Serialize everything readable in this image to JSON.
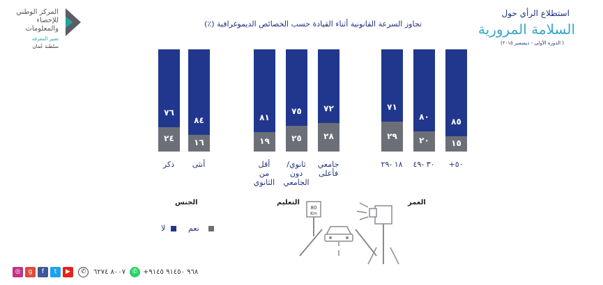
{
  "colors": {
    "yes": "#6d6f78",
    "no": "#21378e",
    "accent": "#3aa6c9"
  },
  "header": {
    "survey_line1": "استطلاع الرأي حول",
    "survey_line2": "السلامة المرورية",
    "survey_line3": "( الدورة الأولى - ديسمبر ٢٠١٥)",
    "chart_title": "تجاوز السرعة القانونية أثناء القيادة حسب الخصائص الديموغرافية (٪)"
  },
  "logo": {
    "line1": "المركز الوطني للإحصاء والمعلومات",
    "line2": "تعبير المعرفة",
    "line3": "سلطنة عُمان"
  },
  "chart_data": {
    "type": "bar",
    "stacked": true,
    "ylim": [
      0,
      100
    ],
    "categories": [
      "ذكر",
      "أنثى",
      "أقل من الثانوي",
      "ثانوي/ دون الجامعي",
      "جامعي فأعلى",
      "١٨ -٢٩",
      "٣٠ -٤٩",
      "٥٠+"
    ],
    "groups": [
      {
        "label": "الجنس",
        "categories": [
          "ذكر",
          "أنثى"
        ]
      },
      {
        "label": "التعليم",
        "categories": [
          "أقل من الثانوي",
          "ثانوي/ دون الجامعي",
          "جامعي فأعلى"
        ]
      },
      {
        "label": "العمر",
        "categories": [
          "١٨ -٢٩",
          "٣٠ -٤٩",
          "٥٠+"
        ]
      }
    ],
    "series": [
      {
        "name": "نعم",
        "values": [
          24,
          16,
          19,
          25,
          28,
          29,
          20,
          15
        ],
        "labels": [
          "٢٤",
          "١٦",
          "١٩",
          "٢٥",
          "٢٨",
          "٢٩",
          "٢٠",
          "١٥"
        ]
      },
      {
        "name": "لا",
        "values": [
          76,
          84,
          81,
          75,
          72,
          71,
          80,
          85
        ],
        "labels": [
          "٧٦",
          "٨٤",
          "٨١",
          "٧٥",
          "٧٢",
          "٧١",
          "٨٠",
          "٨٥"
        ]
      }
    ]
  },
  "legend": {
    "yes_label": "نعم",
    "no_label": "لا"
  },
  "road_sign": {
    "speed": "80",
    "unit": "Km"
  },
  "footer": {
    "whatsapp": "+٩٦٨ ٩١٤٥٠ ٩١٤٥",
    "phone": "٨٠٠٧ ٦٢٧٤",
    "social_icons": [
      "instagram-icon",
      "google-plus-icon",
      "facebook-icon",
      "twitter-icon",
      "youtube-icon"
    ]
  }
}
